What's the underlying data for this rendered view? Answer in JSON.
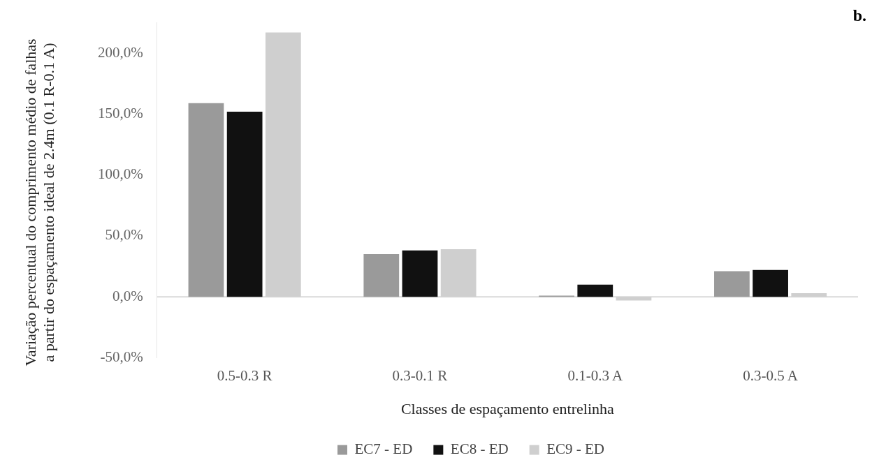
{
  "chart_data": {
    "type": "bar",
    "xlabel": "Classes de espaçamento entrelinha",
    "ylabel": "Variação percentual do comprimento médio de falhas a partir do espaçamento ideal de 2.4m (0.1 R-0.1 A)",
    "annotations": [
      "b."
    ],
    "categories": [
      "0.5-0.3 R",
      "0.3-0.1 R",
      "0.1-0.3 A",
      "0.3-0.5 A"
    ],
    "series": [
      {
        "name": "EC7 - ED",
        "color": "#9a9a9a",
        "values": [
          159,
          35,
          1,
          21
        ]
      },
      {
        "name": "EC8 - ED",
        "color": "#111111",
        "values": [
          152,
          38,
          10,
          22
        ]
      },
      {
        "name": "EC9 - ED",
        "color": "#cfcfcf",
        "values": [
          217,
          39,
          -3,
          3
        ]
      }
    ],
    "ylim": [
      -50,
      225
    ],
    "yticks": [
      {
        "value": -50,
        "label": "-50,0%"
      },
      {
        "value": 0,
        "label": "0,0%"
      },
      {
        "value": 50,
        "label": "50,0%"
      },
      {
        "value": 100,
        "label": "100,0%"
      },
      {
        "value": 150,
        "label": "150,0%"
      },
      {
        "value": 200,
        "label": "200,0%"
      }
    ],
    "ref_lines": [
      {
        "axis": "y",
        "value": 0,
        "color": "#d9d9d9"
      }
    ],
    "grid": false,
    "legend": "bottom"
  }
}
